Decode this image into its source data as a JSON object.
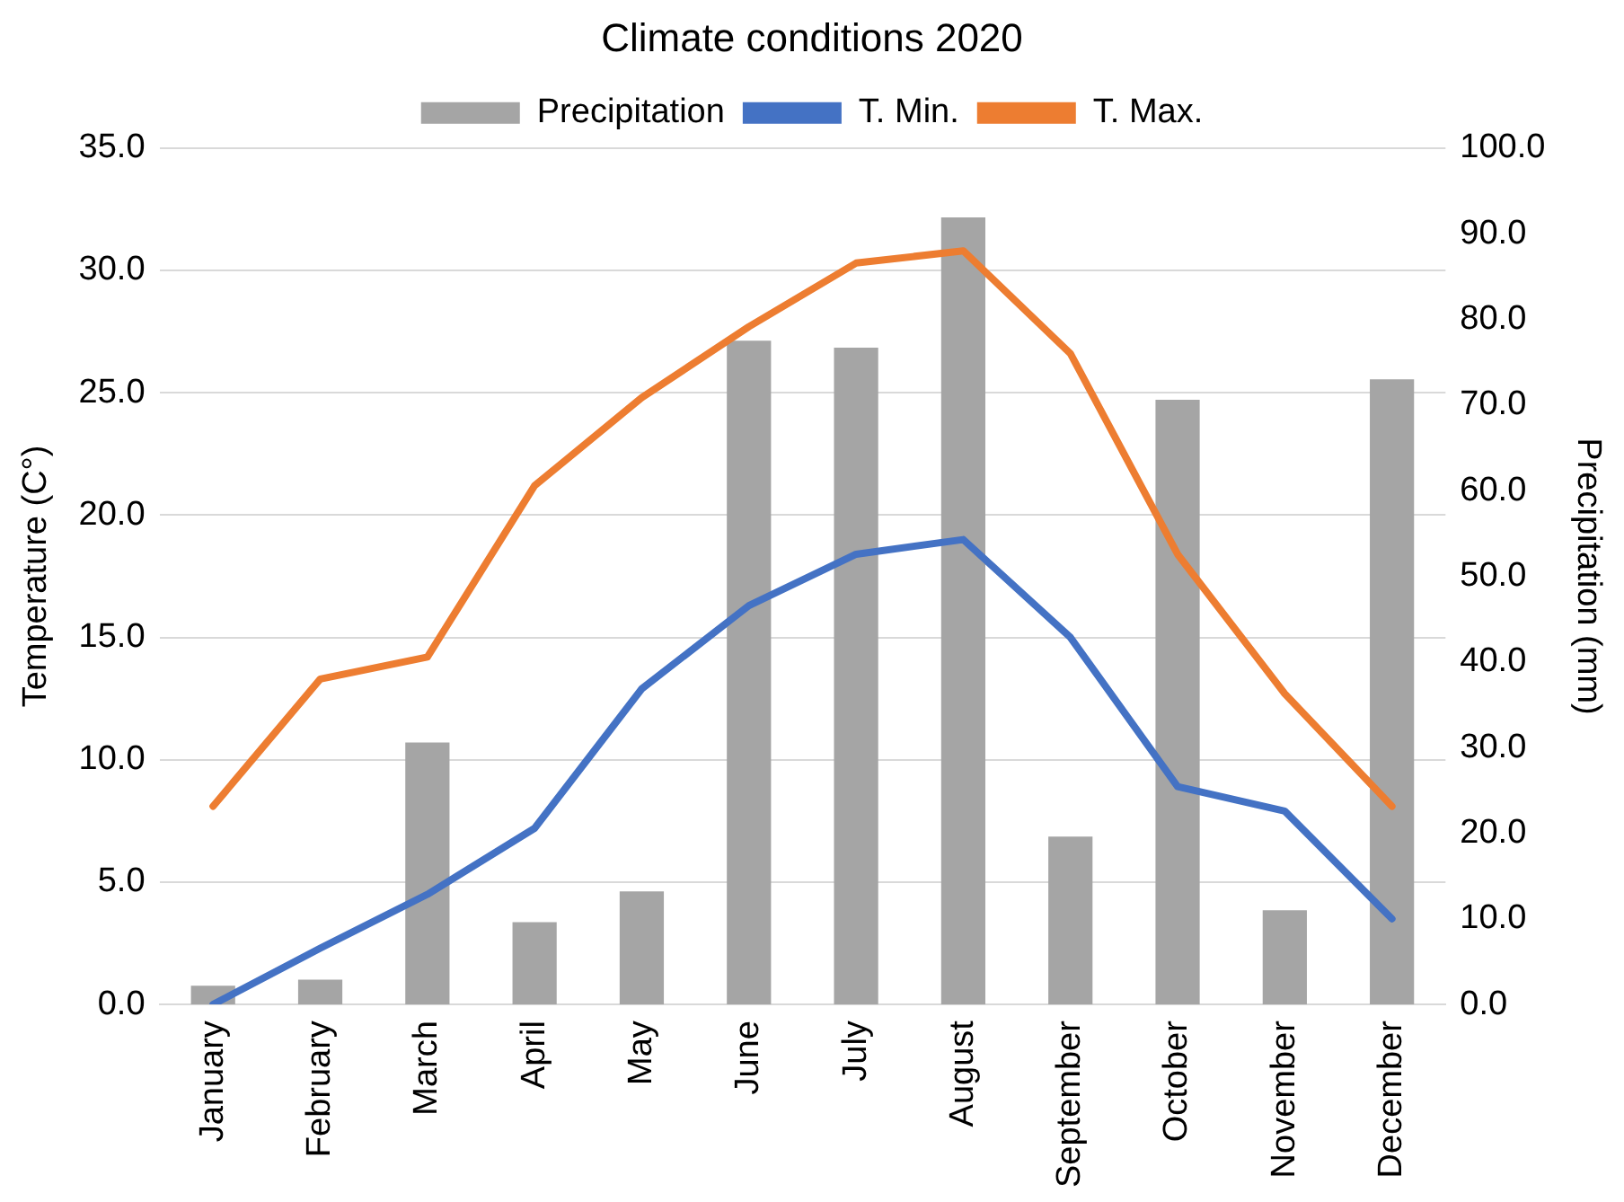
{
  "chart_data": {
    "type": "bar",
    "title": "Climate conditions 2020",
    "ylabel": "Temperature (C°)",
    "y2label": "Precipitation (mm)",
    "categories": [
      "January",
      "February",
      "March",
      "April",
      "May",
      "June",
      "July",
      "August",
      "September",
      "October",
      "November",
      "December"
    ],
    "series": [
      {
        "name": "Precipitation",
        "axis": "y2",
        "color": "#a5a5a5",
        "values": [
          2.2,
          2.9,
          30.6,
          9.6,
          13.2,
          77.5,
          76.7,
          91.9,
          19.6,
          70.6,
          11.0,
          73.0
        ]
      },
      {
        "name": "T. Min.",
        "type": "line",
        "color": "#4472c4",
        "values": [
          0.0,
          2.3,
          4.5,
          7.2,
          12.9,
          16.3,
          18.4,
          19.0,
          15.0,
          8.9,
          7.9,
          3.5
        ]
      },
      {
        "name": "T. Max.",
        "type": "line",
        "color": "#ed7d31",
        "values": [
          8.1,
          13.3,
          14.2,
          21.2,
          24.8,
          27.7,
          30.3,
          30.8,
          26.6,
          18.4,
          12.7,
          8.1
        ]
      }
    ],
    "ylim": [
      0,
      35
    ],
    "yticks": [
      {
        "value": 0,
        "label": "0.0"
      },
      {
        "value": 5,
        "label": "5.0"
      },
      {
        "value": 10,
        "label": "10.0"
      },
      {
        "value": 15,
        "label": "15.0"
      },
      {
        "value": 20,
        "label": "20.0"
      },
      {
        "value": 25,
        "label": "25.0"
      },
      {
        "value": 30,
        "label": "30.0"
      },
      {
        "value": 35,
        "label": "35.0"
      }
    ],
    "y2lim": [
      0,
      100
    ],
    "y2ticks": [
      {
        "value": 0,
        "label": "0.0"
      },
      {
        "value": 10,
        "label": "10.0"
      },
      {
        "value": 20,
        "label": "20.0"
      },
      {
        "value": 30,
        "label": "30.0"
      },
      {
        "value": 40,
        "label": "40.0"
      },
      {
        "value": 50,
        "label": "50.0"
      },
      {
        "value": 60,
        "label": "60.0"
      },
      {
        "value": 70,
        "label": "70.0"
      },
      {
        "value": 80,
        "label": "80.0"
      },
      {
        "value": 90,
        "label": "90.0"
      },
      {
        "value": 100,
        "label": "100.0"
      }
    ],
    "grid": "y",
    "legend": "top",
    "marker": "none",
    "line_style": "solid"
  }
}
